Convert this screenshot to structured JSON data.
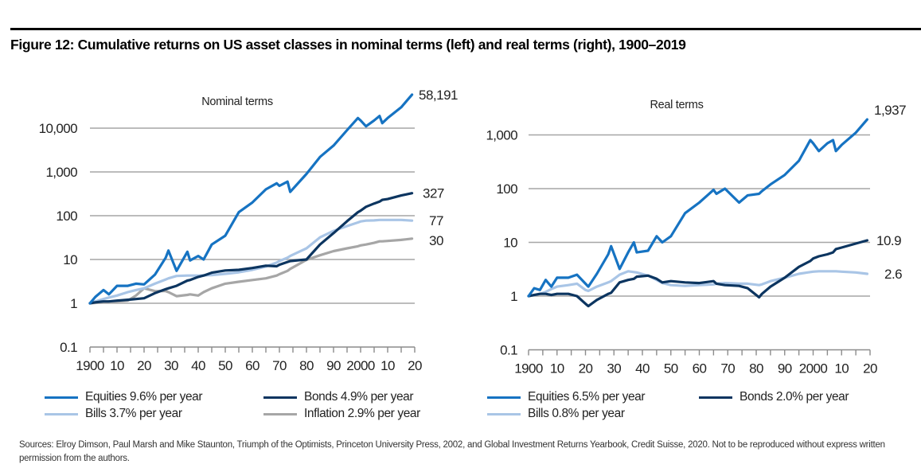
{
  "figure": {
    "title": "Figure 12: Cumulative returns on US asset classes in nominal terms (left) and real terms (right), 1900–2019",
    "sources": "Sources: Elroy Dimson, Paul Marsh and Mike Staunton, Triumph of the Optimists, Princeton University Press, 2002, and Global Investment Returns Yearbook, Credit Suisse, 2020. Not to be reproduced without express written permission from the authors."
  },
  "colors": {
    "equities": "#1673c2",
    "bonds": "#0c3560",
    "bills": "#a9c5e6",
    "inflation": "#a6a6a6"
  },
  "chart_data": [
    {
      "type": "line",
      "title": "Nominal terms",
      "xlabel": "",
      "ylabel": "",
      "yscale": "log",
      "ylim": [
        0.1,
        100000
      ],
      "xlim": [
        1900,
        2020
      ],
      "grid": true,
      "y_ticks": [
        0.1,
        1,
        10,
        100,
        1000,
        10000
      ],
      "y_tick_labels": [
        "0.1",
        "1",
        "10",
        "100",
        "1,000",
        "10,000"
      ],
      "x_ticks": [
        1900,
        1910,
        1920,
        1930,
        1940,
        1950,
        1960,
        1970,
        1980,
        1990,
        2000,
        2010,
        2020
      ],
      "x_tick_labels": [
        "1900",
        "10",
        "20",
        "30",
        "40",
        "50",
        "60",
        "70",
        "80",
        "90",
        "2000",
        "10",
        "20"
      ],
      "legend_position": "bottom",
      "x": [
        1900,
        1902,
        1905,
        1907,
        1910,
        1914,
        1917,
        1920,
        1924,
        1928,
        1929,
        1932,
        1936,
        1937,
        1940,
        1942,
        1945,
        1950,
        1955,
        1960,
        1965,
        1969,
        1970,
        1973,
        1974,
        1980,
        1985,
        1990,
        1995,
        1999,
        2000,
        2002,
        2005,
        2007,
        2008,
        2010,
        2015,
        2019
      ],
      "series": [
        {
          "name": "Equities",
          "legend_label": "Equities  9.6% per year",
          "end_label": "58,191",
          "values": [
            1,
            1.4,
            2.0,
            1.6,
            2.5,
            2.5,
            2.8,
            2.7,
            4.5,
            11,
            16,
            5.5,
            15,
            9.5,
            12,
            10,
            22,
            35,
            120,
            200,
            400,
            550,
            480,
            600,
            350,
            900,
            2200,
            4000,
            9000,
            17000,
            15000,
            11000,
            15000,
            19000,
            13000,
            17000,
            30000,
            58191
          ]
        },
        {
          "name": "Bonds",
          "legend_label": "Bonds  4.9% per year",
          "end_label": "327",
          "values": [
            1,
            1.05,
            1.1,
            1.1,
            1.15,
            1.2,
            1.25,
            1.3,
            1.7,
            2.1,
            2.2,
            2.5,
            3.3,
            3.4,
            4.0,
            4.3,
            5.0,
            5.6,
            5.8,
            6.4,
            7.2,
            7.0,
            7.6,
            8.8,
            9.2,
            10,
            22,
            40,
            75,
            120,
            130,
            160,
            190,
            210,
            230,
            240,
            290,
            327
          ]
        },
        {
          "name": "Bills",
          "legend_label": "Bills  3.7% per year",
          "end_label": "77",
          "values": [
            1,
            1.1,
            1.25,
            1.35,
            1.5,
            1.8,
            2.0,
            2.2,
            2.8,
            3.5,
            3.7,
            4.2,
            4.3,
            4.3,
            4.3,
            4.35,
            4.4,
            4.7,
            5.1,
            5.8,
            6.9,
            8.5,
            9.2,
            11,
            12,
            18,
            32,
            45,
            58,
            70,
            74,
            77,
            78,
            80,
            80,
            80,
            80,
            77
          ]
        },
        {
          "name": "Inflation",
          "legend_label": "Inflation  2.9% per year",
          "end_label": "30",
          "values": [
            1,
            1.02,
            1.05,
            1.1,
            1.1,
            1.15,
            1.5,
            2.2,
            1.9,
            1.9,
            1.8,
            1.45,
            1.55,
            1.6,
            1.5,
            1.8,
            2.2,
            2.8,
            3.1,
            3.4,
            3.7,
            4.3,
            4.6,
            5.5,
            6.1,
            9.8,
            12.5,
            15.5,
            18,
            20,
            21,
            22,
            24,
            26,
            26,
            26.5,
            28,
            30
          ]
        }
      ]
    },
    {
      "type": "line",
      "title": "Real terms",
      "xlabel": "",
      "ylabel": "",
      "yscale": "log",
      "ylim": [
        0.1,
        5000
      ],
      "xlim": [
        1900,
        2020
      ],
      "grid": true,
      "y_ticks": [
        0.1,
        1,
        10,
        100,
        1000
      ],
      "y_tick_labels": [
        "0.1",
        "1",
        "10",
        "100",
        "1,000"
      ],
      "x_ticks": [
        1900,
        1910,
        1920,
        1930,
        1940,
        1950,
        1960,
        1970,
        1980,
        1990,
        2000,
        2010,
        2020
      ],
      "x_tick_labels": [
        "1900",
        "10",
        "20",
        "30",
        "40",
        "50",
        "60",
        "70",
        "80",
        "90",
        "2000",
        "10",
        "20"
      ],
      "legend_position": "bottom",
      "x": [
        1900,
        1902,
        1904,
        1906,
        1908,
        1910,
        1914,
        1917,
        1920,
        1921,
        1924,
        1928,
        1929,
        1932,
        1935,
        1937,
        1938,
        1942,
        1945,
        1947,
        1950,
        1955,
        1960,
        1965,
        1966,
        1969,
        1974,
        1977,
        1981,
        1982,
        1985,
        1990,
        1995,
        1999,
        2000,
        2002,
        2005,
        2007,
        2008,
        2010,
        2015,
        2019
      ],
      "series": [
        {
          "name": "Equities",
          "legend_label": "Equities  6.5% per year",
          "end_label": "1,937",
          "values": [
            1,
            1.4,
            1.3,
            2.0,
            1.5,
            2.2,
            2.2,
            2.5,
            1.7,
            1.5,
            2.6,
            6.0,
            8.5,
            3.2,
            6.5,
            10,
            6.5,
            7.0,
            13,
            10,
            13,
            35,
            55,
            95,
            80,
            100,
            55,
            75,
            80,
            90,
            120,
            180,
            330,
            800,
            700,
            500,
            700,
            800,
            500,
            650,
            1100,
            1937
          ]
        },
        {
          "name": "Bonds",
          "legend_label": "Bonds 2.0% per year",
          "end_label": "10.9",
          "values": [
            1,
            1.05,
            1.1,
            1.1,
            1.05,
            1.1,
            1.1,
            1.0,
            0.72,
            0.65,
            0.85,
            1.1,
            1.15,
            1.8,
            2.0,
            2.1,
            2.3,
            2.4,
            2.1,
            1.8,
            1.9,
            1.8,
            1.75,
            1.9,
            1.7,
            1.6,
            1.55,
            1.4,
            0.95,
            1.1,
            1.5,
            2.2,
            3.5,
            4.5,
            5.0,
            5.5,
            6.0,
            6.5,
            7.5,
            8.0,
            9.5,
            10.9
          ]
        },
        {
          "name": "Bills",
          "legend_label": "Bills 0.8% per year",
          "end_label": "2.6",
          "values": [
            1,
            1.05,
            1.1,
            1.2,
            1.35,
            1.5,
            1.6,
            1.7,
            1.3,
            1.25,
            1.5,
            1.8,
            1.9,
            2.5,
            2.9,
            2.8,
            2.75,
            2.4,
            2.0,
            1.75,
            1.6,
            1.55,
            1.6,
            1.65,
            1.7,
            1.75,
            1.7,
            1.7,
            1.6,
            1.65,
            1.9,
            2.2,
            2.6,
            2.8,
            2.85,
            2.9,
            2.9,
            2.9,
            2.9,
            2.85,
            2.75,
            2.6
          ]
        }
      ]
    }
  ]
}
